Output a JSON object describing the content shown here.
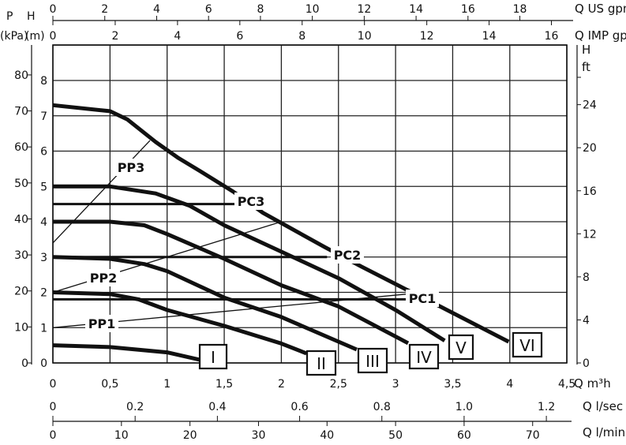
{
  "chart_data": {
    "type": "line",
    "grid": true,
    "legend": "none",
    "x_axes": {
      "m3h": {
        "label": "Q m³h",
        "ticks": [
          "0",
          "0,5",
          "1",
          "1,5",
          "2",
          "2,5",
          "3",
          "3,5",
          "4",
          "4,5"
        ],
        "range": [
          0,
          4.5
        ]
      },
      "us_gpm": {
        "label": "Q US gpm",
        "ticks": [
          "0",
          "2",
          "4",
          "6",
          "8",
          "10",
          "12",
          "14",
          "16",
          "18"
        ]
      },
      "imp_gpm": {
        "label": "Q IMP gpm",
        "ticks": [
          "0",
          "2",
          "4",
          "6",
          "8",
          "10",
          "12",
          "14",
          "16"
        ]
      },
      "l_sec": {
        "label": "Q l/sec",
        "ticks": [
          "0",
          "0.2",
          "0.4",
          "0.6",
          "0.8",
          "1.0",
          "1.2"
        ]
      },
      "l_min": {
        "label": "Q l/min",
        "ticks": [
          "0",
          "10",
          "20",
          "30",
          "40",
          "50",
          "60",
          "70"
        ]
      }
    },
    "y_axes": {
      "m": {
        "label_top": "H",
        "label_bottom": "(m)",
        "ticks": [
          "0",
          "1",
          "2",
          "3",
          "4",
          "5",
          "6",
          "7",
          "8"
        ],
        "range": [
          0,
          9
        ]
      },
      "kpa": {
        "label_top": "P",
        "label_bottom": "(kPa)",
        "ticks": [
          "0",
          "10",
          "20",
          "30",
          "40",
          "50",
          "60",
          "70",
          "80"
        ]
      },
      "ft": {
        "label_top": "H",
        "label_bottom": "ft",
        "ticks": [
          "0",
          "4",
          "8",
          "12",
          "16",
          "20",
          "24"
        ]
      }
    },
    "series": [
      {
        "name": "I",
        "points": [
          [
            0,
            0.5
          ],
          [
            0.5,
            0.45
          ],
          [
            1,
            0.3
          ],
          [
            1.3,
            0.08
          ]
        ]
      },
      {
        "name": "II",
        "points": [
          [
            0,
            2
          ],
          [
            0.5,
            1.95
          ],
          [
            0.75,
            1.8
          ],
          [
            1,
            1.5
          ],
          [
            1.5,
            1.05
          ],
          [
            2,
            0.55
          ],
          [
            2.22,
            0.27
          ]
        ]
      },
      {
        "name": "III",
        "points": [
          [
            0,
            3
          ],
          [
            0.5,
            2.95
          ],
          [
            0.8,
            2.8
          ],
          [
            1,
            2.6
          ],
          [
            1.5,
            1.85
          ],
          [
            2,
            1.3
          ],
          [
            2.66,
            0.38
          ]
        ]
      },
      {
        "name": "IV",
        "points": [
          [
            0,
            4
          ],
          [
            0.5,
            4
          ],
          [
            0.8,
            3.9
          ],
          [
            1,
            3.65
          ],
          [
            1.25,
            3.3
          ],
          [
            1.5,
            2.95
          ],
          [
            2,
            2.2
          ],
          [
            2.5,
            1.6
          ],
          [
            3.11,
            0.56
          ]
        ]
      },
      {
        "name": "V",
        "points": [
          [
            0,
            5
          ],
          [
            0.5,
            5
          ],
          [
            0.9,
            4.8
          ],
          [
            1.2,
            4.45
          ],
          [
            1.5,
            3.9
          ],
          [
            2,
            3.15
          ],
          [
            2.5,
            2.4
          ],
          [
            3,
            1.5
          ],
          [
            3.43,
            0.63
          ]
        ]
      },
      {
        "name": "VI",
        "points": [
          [
            0,
            7.3
          ],
          [
            0.5,
            7.13
          ],
          [
            0.65,
            6.9
          ],
          [
            0.9,
            6.26
          ],
          [
            1.1,
            5.8
          ],
          [
            1.29,
            5.43
          ],
          [
            1.58,
            4.85
          ],
          [
            1.84,
            4.25
          ],
          [
            2.38,
            3.28
          ],
          [
            2.7,
            2.73
          ],
          [
            3.08,
            2.1
          ],
          [
            3.39,
            1.6
          ],
          [
            3.99,
            0.6
          ]
        ]
      }
    ],
    "control_lines": [
      {
        "name": "PC1",
        "points": [
          [
            0,
            1.8
          ],
          [
            3.1,
            1.8
          ]
        ]
      },
      {
        "name": "PC2",
        "points": [
          [
            0,
            3
          ],
          [
            2.4,
            3
          ]
        ]
      },
      {
        "name": "PC3",
        "points": [
          [
            0,
            4.5
          ],
          [
            1.6,
            4.5
          ]
        ]
      },
      {
        "name": "PP1",
        "points": [
          [
            0,
            1.0
          ],
          [
            3.1,
            1.95
          ]
        ]
      },
      {
        "name": "PP2",
        "points": [
          [
            0,
            2.0
          ],
          [
            2.0,
            4.0
          ]
        ]
      },
      {
        "name": "PP3",
        "points": [
          [
            0,
            3.4
          ],
          [
            0.85,
            6.3
          ]
        ]
      }
    ]
  }
}
